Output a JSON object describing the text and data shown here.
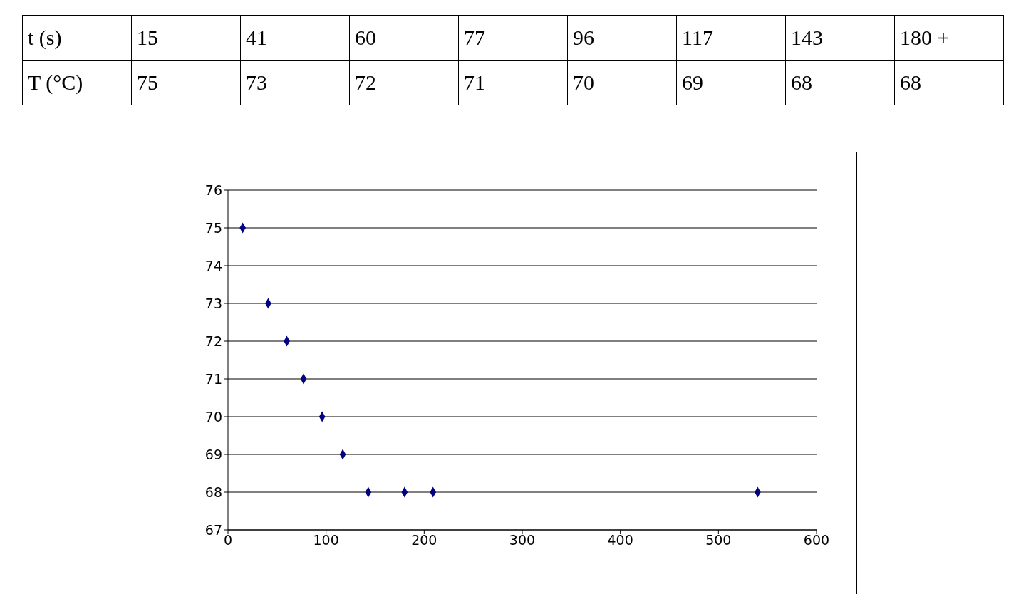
{
  "chart_data": {
    "type": "scatter",
    "annotations": [
      "t (s)",
      "15",
      "41",
      "60",
      "77",
      "96",
      "117",
      "143",
      "180 +",
      "T (°C)",
      "75",
      "73",
      "72",
      "71",
      "70",
      "69",
      "68",
      "68"
    ],
    "x": [
      15,
      41,
      60,
      77,
      96,
      117,
      143,
      180,
      209,
      540
    ],
    "series": [
      {
        "color": "#000080",
        "values": [
          75,
          73,
          72,
          71,
          70,
          69,
          68,
          68,
          68,
          68
        ]
      }
    ],
    "xlim": [
      0,
      600
    ],
    "xticks": [
      0,
      100,
      200,
      300,
      400,
      500,
      600
    ],
    "ylim": [
      67,
      76
    ],
    "yticks": [
      67,
      68,
      69,
      70,
      71,
      72,
      73,
      74,
      75,
      76
    ],
    "grid": "y",
    "marker": "diamond",
    "legend": false
  }
}
